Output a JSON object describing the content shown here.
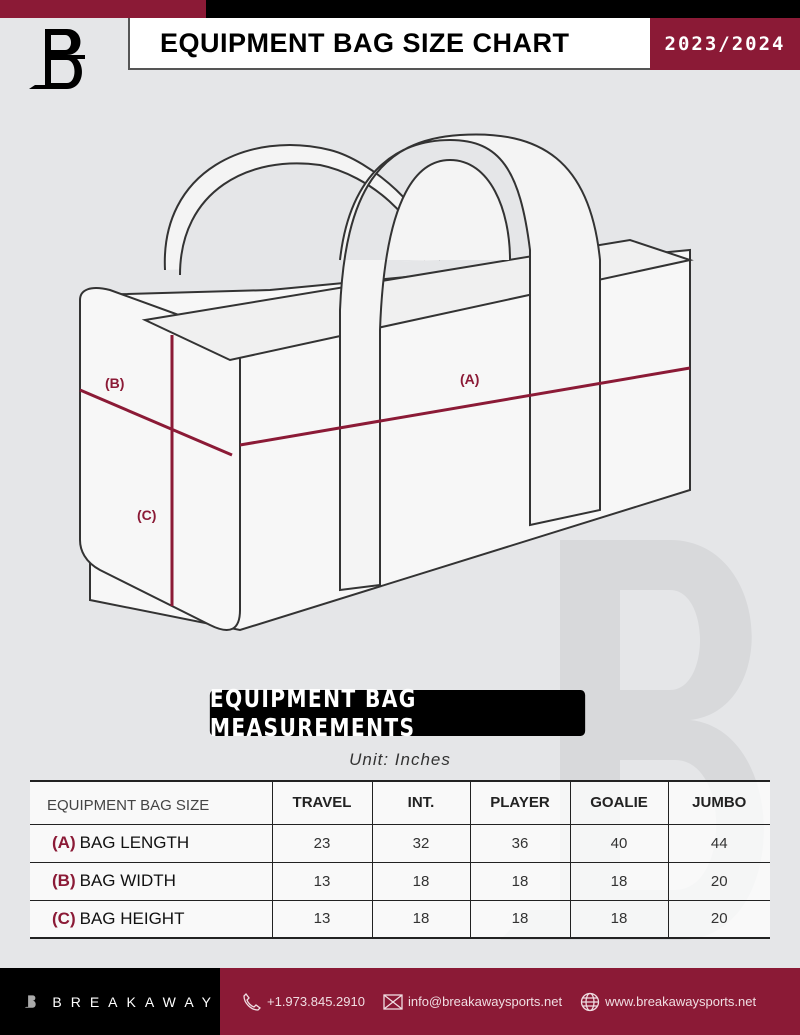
{
  "header": {
    "title": "EQUIPMENT BAG SIZE CHART",
    "season": "2023/2024"
  },
  "diagram": {
    "label_a": "(A)",
    "label_b": "(B)",
    "label_c": "(C)"
  },
  "section": {
    "title": "EQUIPMENT BAG MEASUREMENTS",
    "unit": "Unit: Inches"
  },
  "table": {
    "header_label": "EQUIPMENT BAG SIZE",
    "columns": [
      "TRAVEL",
      "INT.",
      "PLAYER",
      "GOALIE",
      "JUMBO"
    ],
    "rows": [
      {
        "code": "(A)",
        "label": "BAG LENGTH",
        "values": [
          "23",
          "32",
          "36",
          "40",
          "44"
        ]
      },
      {
        "code": "(B)",
        "label": "BAG WIDTH",
        "values": [
          "13",
          "18",
          "18",
          "18",
          "20"
        ]
      },
      {
        "code": "(C)",
        "label": "BAG HEIGHT",
        "values": [
          "13",
          "18",
          "18",
          "18",
          "20"
        ]
      }
    ]
  },
  "footer": {
    "brand": "BREAKAWAY",
    "phone": "+1.973.845.2910",
    "email": "info@breakawaysports.net",
    "website": "www.breakawaysports.net"
  },
  "colors": {
    "accent": "#8b1a36",
    "dark": "#000000",
    "background": "#e5e6e8"
  }
}
